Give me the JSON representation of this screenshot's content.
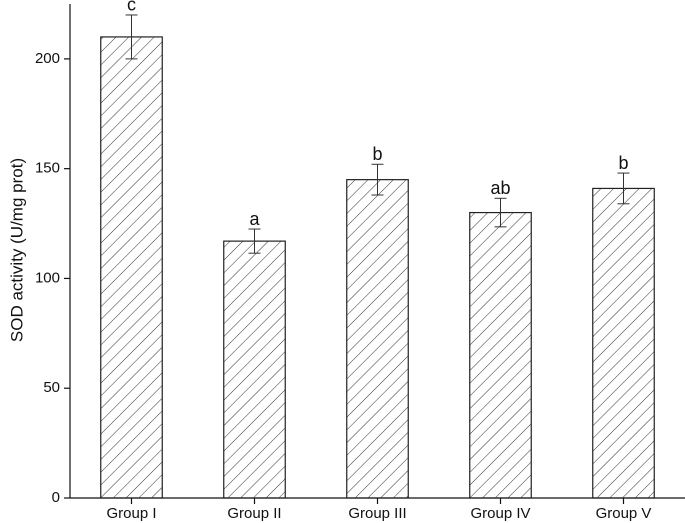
{
  "chart_data": {
    "type": "bar",
    "y_label": "SOD activity (U/mg prot)",
    "categories": [
      "Group I",
      "Group II",
      "Group III",
      "Group IV",
      "Group V"
    ],
    "values": [
      210,
      117,
      145,
      130,
      141
    ],
    "errors": [
      10,
      5.5,
      7,
      6.5,
      7
    ],
    "significance_labels": [
      "c",
      "a",
      "b",
      "ab",
      "b"
    ],
    "color": "#222222",
    "ylim": [
      0,
      225
    ],
    "yticks": [
      0,
      50,
      100,
      150,
      200
    ]
  }
}
